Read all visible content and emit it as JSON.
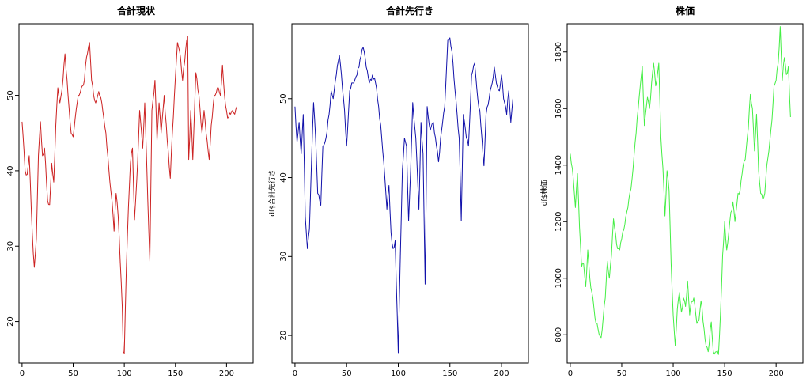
{
  "chart_data": [
    {
      "type": "line",
      "title": "合計現状",
      "ylabel": "",
      "color": "#cc2222",
      "xlim": [
        -3,
        226
      ],
      "ylim": [
        14.5,
        59.5
      ],
      "xticks": [
        0,
        50,
        100,
        150,
        200
      ],
      "yticks": [
        20,
        30,
        40,
        50
      ],
      "anchors": [
        [
          0,
          46.5
        ],
        [
          3,
          40
        ],
        [
          5,
          39.5
        ],
        [
          7,
          42
        ],
        [
          9,
          35
        ],
        [
          11,
          29
        ],
        [
          12,
          27.2
        ],
        [
          14,
          31
        ],
        [
          16,
          42
        ],
        [
          18,
          46.5
        ],
        [
          20,
          42
        ],
        [
          22,
          43
        ],
        [
          25,
          36
        ],
        [
          27,
          35.5
        ],
        [
          29,
          41
        ],
        [
          31,
          38.5
        ],
        [
          33,
          46
        ],
        [
          35,
          51
        ],
        [
          37,
          49
        ],
        [
          40,
          52
        ],
        [
          42,
          55.5
        ],
        [
          45,
          50
        ],
        [
          48,
          45
        ],
        [
          50,
          44.5
        ],
        [
          52,
          47
        ],
        [
          55,
          50
        ],
        [
          58,
          51
        ],
        [
          61,
          52
        ],
        [
          63,
          55
        ],
        [
          66,
          57
        ],
        [
          68,
          52
        ],
        [
          70,
          50
        ],
        [
          72,
          49
        ],
        [
          75,
          50.5
        ],
        [
          78,
          49
        ],
        [
          82,
          45
        ],
        [
          85,
          40
        ],
        [
          88,
          36
        ],
        [
          90,
          32
        ],
        [
          92,
          37
        ],
        [
          94,
          34
        ],
        [
          96,
          28
        ],
        [
          98,
          22
        ],
        [
          99,
          16
        ],
        [
          100,
          15.8
        ],
        [
          102,
          27
        ],
        [
          104,
          35
        ],
        [
          106,
          41
        ],
        [
          108,
          43
        ],
        [
          110,
          33.5
        ],
        [
          113,
          41
        ],
        [
          115,
          48
        ],
        [
          118,
          43
        ],
        [
          120,
          49
        ],
        [
          123,
          36
        ],
        [
          125,
          28
        ],
        [
          127,
          48
        ],
        [
          130,
          52
        ],
        [
          132,
          44
        ],
        [
          134,
          49
        ],
        [
          136,
          45
        ],
        [
          139,
          50
        ],
        [
          142,
          44
        ],
        [
          145,
          39
        ],
        [
          147,
          45
        ],
        [
          149,
          50
        ],
        [
          152,
          57
        ],
        [
          155,
          55
        ],
        [
          157,
          52
        ],
        [
          160,
          56
        ],
        [
          162,
          57.8
        ],
        [
          163,
          41.5
        ],
        [
          165,
          48
        ],
        [
          167,
          41.5
        ],
        [
          170,
          53
        ],
        [
          173,
          50
        ],
        [
          176,
          45
        ],
        [
          178,
          48
        ],
        [
          181,
          44
        ],
        [
          183,
          41.5
        ],
        [
          185,
          46
        ],
        [
          188,
          50
        ],
        [
          191,
          51
        ],
        [
          194,
          50
        ],
        [
          196,
          54
        ],
        [
          198,
          50
        ],
        [
          201,
          47
        ],
        [
          204,
          47.5
        ],
        [
          206,
          48
        ],
        [
          208,
          47.5
        ],
        [
          210,
          48.5
        ]
      ]
    },
    {
      "type": "line",
      "title": "合計先行き",
      "ylabel": "df$合計先行き",
      "color": "#1111aa",
      "xlim": [
        -3,
        226
      ],
      "ylim": [
        16.5,
        59.5
      ],
      "xticks": [
        0,
        50,
        100,
        150,
        200
      ],
      "yticks": [
        20,
        30,
        40,
        50
      ],
      "anchors": [
        [
          0,
          49
        ],
        [
          2,
          44.5
        ],
        [
          4,
          47
        ],
        [
          6,
          43
        ],
        [
          8,
          48
        ],
        [
          10,
          35
        ],
        [
          12,
          31
        ],
        [
          14,
          33.5
        ],
        [
          16,
          42
        ],
        [
          18,
          49.5
        ],
        [
          20,
          45
        ],
        [
          22,
          38
        ],
        [
          25,
          36.5
        ],
        [
          27,
          44
        ],
        [
          30,
          45
        ],
        [
          33,
          48
        ],
        [
          35,
          51
        ],
        [
          37,
          50
        ],
        [
          40,
          53
        ],
        [
          43,
          55.5
        ],
        [
          45,
          53
        ],
        [
          48,
          48.5
        ],
        [
          50,
          44
        ],
        [
          53,
          51
        ],
        [
          56,
          52
        ],
        [
          60,
          53
        ],
        [
          63,
          55
        ],
        [
          66,
          56.5
        ],
        [
          69,
          54
        ],
        [
          72,
          52
        ],
        [
          75,
          53
        ],
        [
          78,
          52
        ],
        [
          81,
          49
        ],
        [
          84,
          45
        ],
        [
          87,
          40
        ],
        [
          89,
          36
        ],
        [
          91,
          39
        ],
        [
          93,
          33
        ],
        [
          95,
          31
        ],
        [
          97,
          32
        ],
        [
          98,
          27
        ],
        [
          100,
          17.8
        ],
        [
          102,
          30
        ],
        [
          104,
          41
        ],
        [
          106,
          45
        ],
        [
          108,
          44
        ],
        [
          110,
          34.5
        ],
        [
          112,
          41
        ],
        [
          114,
          49.5
        ],
        [
          117,
          45
        ],
        [
          120,
          36
        ],
        [
          122,
          47
        ],
        [
          124,
          43
        ],
        [
          126,
          26.5
        ],
        [
          128,
          49
        ],
        [
          131,
          46
        ],
        [
          134,
          47
        ],
        [
          137,
          44
        ],
        [
          139,
          42
        ],
        [
          142,
          46
        ],
        [
          145,
          49
        ],
        [
          148,
          57.5
        ],
        [
          150,
          57.7
        ],
        [
          152,
          56
        ],
        [
          155,
          51
        ],
        [
          157,
          48
        ],
        [
          159,
          45
        ],
        [
          161,
          34.5
        ],
        [
          163,
          48
        ],
        [
          166,
          45
        ],
        [
          168,
          44
        ],
        [
          171,
          53
        ],
        [
          174,
          54.5
        ],
        [
          177,
          50
        ],
        [
          179,
          48.5
        ],
        [
          181,
          45
        ],
        [
          183,
          41.5
        ],
        [
          185,
          48
        ],
        [
          188,
          50
        ],
        [
          191,
          52
        ],
        [
          193,
          54
        ],
        [
          195,
          52
        ],
        [
          198,
          51
        ],
        [
          200,
          53
        ],
        [
          202,
          50
        ],
        [
          205,
          48
        ],
        [
          207,
          51
        ],
        [
          209,
          47
        ],
        [
          211,
          50
        ]
      ]
    },
    {
      "type": "line",
      "title": "株価",
      "ylabel": "df$株価",
      "color": "#44ee44",
      "xlim": [
        -3,
        226
      ],
      "ylim": [
        700,
        1900
      ],
      "xticks": [
        0,
        50,
        100,
        150,
        200
      ],
      "yticks": [
        800,
        1000,
        1200,
        1400,
        1600,
        1800
      ],
      "anchors": [
        [
          0,
          1440
        ],
        [
          3,
          1350
        ],
        [
          5,
          1250
        ],
        [
          7,
          1370
        ],
        [
          9,
          1180
        ],
        [
          11,
          1040
        ],
        [
          13,
          1050
        ],
        [
          15,
          970
        ],
        [
          17,
          1100
        ],
        [
          19,
          1000
        ],
        [
          21,
          950
        ],
        [
          24,
          860
        ],
        [
          27,
          820
        ],
        [
          30,
          790
        ],
        [
          32,
          860
        ],
        [
          34,
          930
        ],
        [
          36,
          1060
        ],
        [
          38,
          1000
        ],
        [
          40,
          1080
        ],
        [
          42,
          1210
        ],
        [
          45,
          1120
        ],
        [
          48,
          1100
        ],
        [
          50,
          1140
        ],
        [
          53,
          1190
        ],
        [
          56,
          1250
        ],
        [
          60,
          1350
        ],
        [
          63,
          1480
        ],
        [
          66,
          1600
        ],
        [
          68,
          1680
        ],
        [
          70,
          1750
        ],
        [
          72,
          1540
        ],
        [
          75,
          1640
        ],
        [
          77,
          1600
        ],
        [
          79,
          1690
        ],
        [
          81,
          1760
        ],
        [
          83,
          1680
        ],
        [
          86,
          1760
        ],
        [
          88,
          1500
        ],
        [
          90,
          1390
        ],
        [
          92,
          1220
        ],
        [
          94,
          1380
        ],
        [
          96,
          1310
        ],
        [
          98,
          1050
        ],
        [
          100,
          870
        ],
        [
          102,
          760
        ],
        [
          104,
          890
        ],
        [
          106,
          950
        ],
        [
          108,
          880
        ],
        [
          110,
          930
        ],
        [
          112,
          900
        ],
        [
          114,
          990
        ],
        [
          116,
          870
        ],
        [
          118,
          920
        ],
        [
          120,
          930
        ],
        [
          123,
          840
        ],
        [
          125,
          850
        ],
        [
          127,
          920
        ],
        [
          130,
          820
        ],
        [
          132,
          760
        ],
        [
          134,
          740
        ],
        [
          137,
          845
        ],
        [
          139,
          740
        ],
        [
          142,
          740
        ],
        [
          144,
          730
        ],
        [
          146,
          880
        ],
        [
          148,
          1080
        ],
        [
          150,
          1200
        ],
        [
          152,
          1100
        ],
        [
          155,
          1200
        ],
        [
          158,
          1270
        ],
        [
          160,
          1200
        ],
        [
          163,
          1300
        ],
        [
          165,
          1310
        ],
        [
          168,
          1400
        ],
        [
          170,
          1420
        ],
        [
          173,
          1530
        ],
        [
          175,
          1650
        ],
        [
          177,
          1600
        ],
        [
          179,
          1450
        ],
        [
          181,
          1580
        ],
        [
          183,
          1380
        ],
        [
          185,
          1300
        ],
        [
          187,
          1280
        ],
        [
          189,
          1300
        ],
        [
          191,
          1400
        ],
        [
          193,
          1450
        ],
        [
          196,
          1560
        ],
        [
          198,
          1680
        ],
        [
          200,
          1700
        ],
        [
          202,
          1760
        ],
        [
          204,
          1890
        ],
        [
          206,
          1700
        ],
        [
          208,
          1780
        ],
        [
          210,
          1720
        ],
        [
          212,
          1750
        ],
        [
          214,
          1570
        ]
      ]
    }
  ]
}
